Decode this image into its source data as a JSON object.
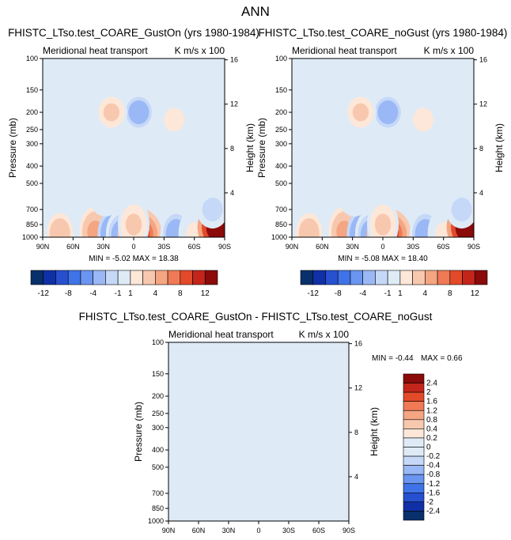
{
  "figure_title": "ANN",
  "colors": {
    "fill_scale": [
      "#08306b",
      "#1030a8",
      "#2750d0",
      "#3f74e8",
      "#6a95f0",
      "#9ab8f5",
      "#c6d8f8",
      "#deebf7",
      "#fde7d8",
      "#f8c8ae",
      "#f4a582",
      "#ef7a55",
      "#e34a2a",
      "#c3251b",
      "#8b0a0a"
    ],
    "background_level": "#deebf7"
  },
  "chart_data": [
    {
      "type": "heatmap",
      "title": "FHISTC_LTso.test_COARE_GustOn (yrs 1980-1984)",
      "left_string": "Meridional heat transport",
      "right_string": "K m/s x 100",
      "xlabel": "",
      "ylabel": "Pressure (mb)",
      "ylabel_right": "Height (km)",
      "x_ticks": [
        "90N",
        "60N",
        "30N",
        "0",
        "30S",
        "60S",
        "90S"
      ],
      "x_values": [
        90,
        60,
        30,
        0,
        -30,
        -60,
        -90
      ],
      "y_ticks": [
        "100",
        "150",
        "200",
        "250",
        "300",
        "400",
        "500",
        "700",
        "850",
        "1000"
      ],
      "y_values": [
        100,
        150,
        200,
        250,
        300,
        400,
        500,
        700,
        850,
        1000
      ],
      "y_right_ticks": [
        "16",
        "12",
        "8",
        "4"
      ],
      "y_right_values": [
        16,
        12,
        8,
        4
      ],
      "y_scale": "log",
      "ylim": [
        1000,
        100
      ],
      "xlim": [
        90,
        -90
      ],
      "stats": "MIN =  -5.02   MAX =  18.38",
      "min": -5.02,
      "max": 18.38,
      "blobs": [
        {
          "lat": 73,
          "p": 950,
          "value": 3.5
        },
        {
          "lat": 38,
          "p": 930,
          "value": 4
        },
        {
          "lat": 20,
          "p": 960,
          "value": -5
        },
        {
          "lat": 12,
          "p": 970,
          "value": -3
        },
        {
          "lat": -6,
          "p": 960,
          "value": 9
        },
        {
          "lat": 0,
          "p": 850,
          "value": 2
        },
        {
          "lat": -5,
          "p": 200,
          "value": -4
        },
        {
          "lat": 22,
          "p": 200,
          "value": 2
        },
        {
          "lat": -40,
          "p": 220,
          "value": 1.5
        },
        {
          "lat": -42,
          "p": 960,
          "value": -4
        },
        {
          "lat": -60,
          "p": 950,
          "value": 1
        },
        {
          "lat": -85,
          "p": 880,
          "value": 16
        },
        {
          "lat": -78,
          "p": 700,
          "value": -2
        },
        {
          "lat": 75,
          "p": 500,
          "value": 0.8
        },
        {
          "lat": 28,
          "p": 600,
          "value": 0.8
        },
        {
          "lat": -30,
          "p": 500,
          "value": 0.6
        },
        {
          "lat": -65,
          "p": 500,
          "value": -0.4
        }
      ]
    },
    {
      "type": "heatmap",
      "title": "FHISTC_LTso.test_COARE_noGust (yrs 1980-1984)",
      "left_string": "Meridional heat transport",
      "right_string": "K m/s x 100",
      "xlabel": "",
      "ylabel": "Pressure (mb)",
      "ylabel_right": "Height (km)",
      "x_ticks": [
        "90N",
        "60N",
        "30N",
        "0",
        "30S",
        "60S",
        "90S"
      ],
      "x_values": [
        90,
        60,
        30,
        0,
        -30,
        -60,
        -90
      ],
      "y_ticks": [
        "100",
        "150",
        "200",
        "250",
        "300",
        "400",
        "500",
        "700",
        "850",
        "1000"
      ],
      "y_values": [
        100,
        150,
        200,
        250,
        300,
        400,
        500,
        700,
        850,
        1000
      ],
      "y_right_ticks": [
        "16",
        "12",
        "8",
        "4"
      ],
      "y_right_values": [
        16,
        12,
        8,
        4
      ],
      "y_scale": "log",
      "ylim": [
        1000,
        100
      ],
      "xlim": [
        90,
        -90
      ],
      "stats": "MIN =  -5.08   MAX =  18.40",
      "min": -5.08,
      "max": 18.4,
      "blobs": [
        {
          "lat": 73,
          "p": 950,
          "value": 3.5
        },
        {
          "lat": 38,
          "p": 930,
          "value": 4
        },
        {
          "lat": 20,
          "p": 960,
          "value": -5
        },
        {
          "lat": 12,
          "p": 970,
          "value": -3
        },
        {
          "lat": -6,
          "p": 960,
          "value": 9
        },
        {
          "lat": 0,
          "p": 850,
          "value": 2
        },
        {
          "lat": -5,
          "p": 200,
          "value": -4
        },
        {
          "lat": 22,
          "p": 200,
          "value": 2
        },
        {
          "lat": -40,
          "p": 220,
          "value": 1.5
        },
        {
          "lat": -42,
          "p": 960,
          "value": -4
        },
        {
          "lat": -60,
          "p": 950,
          "value": 1
        },
        {
          "lat": -85,
          "p": 880,
          "value": 16
        },
        {
          "lat": -78,
          "p": 700,
          "value": -2
        },
        {
          "lat": 75,
          "p": 500,
          "value": 0.8
        },
        {
          "lat": 28,
          "p": 600,
          "value": 0.8
        },
        {
          "lat": -30,
          "p": 500,
          "value": 0.6
        },
        {
          "lat": -65,
          "p": 500,
          "value": -0.4
        }
      ]
    },
    {
      "type": "heatmap",
      "title": "FHISTC_LTso.test_COARE_GustOn - FHISTC_LTso.test_COARE_noGust",
      "left_string": "Meridional heat transport",
      "right_string": "K m/s x 100",
      "xlabel": "",
      "ylabel": "Pressure (mb)",
      "ylabel_right": "Height (km)",
      "x_ticks": [
        "90N",
        "60N",
        "30N",
        "0",
        "30S",
        "60S",
        "90S"
      ],
      "x_values": [
        90,
        60,
        30,
        0,
        -30,
        -60,
        -90
      ],
      "y_ticks": [
        "100",
        "150",
        "200",
        "250",
        "300",
        "400",
        "500",
        "700",
        "850",
        "1000"
      ],
      "y_values": [
        100,
        150,
        200,
        250,
        300,
        400,
        500,
        700,
        850,
        1000
      ],
      "y_right_ticks": [
        "16",
        "12",
        "8",
        "4"
      ],
      "y_right_values": [
        16,
        12,
        8,
        4
      ],
      "y_scale": "log",
      "ylim": [
        1000,
        100
      ],
      "xlim": [
        90,
        -90
      ],
      "stats_min": "MIN =  -0.44",
      "stats_max": "MAX =   0.66",
      "min": -0.44,
      "max": 0.66,
      "stripes": [
        {
          "lat": 76,
          "value": 0.1
        },
        {
          "lat": 60,
          "value": -0.05
        },
        {
          "lat": 43,
          "value": 0.1
        },
        {
          "lat": 28,
          "value": -0.05
        },
        {
          "lat": 15,
          "value": 0.1
        },
        {
          "lat": 2,
          "value": -0.05
        },
        {
          "lat": -10,
          "value": 0.1
        },
        {
          "lat": -25,
          "value": -0.05
        },
        {
          "lat": -38,
          "value": 0.1
        },
        {
          "lat": -50,
          "value": -0.05
        },
        {
          "lat": -62,
          "value": 0.1
        },
        {
          "lat": -76,
          "value": -0.05
        },
        {
          "lat": -86,
          "value": 0.1
        }
      ]
    }
  ],
  "colorbars": [
    {
      "orientation": "horizontal",
      "labels": [
        "-12",
        "-8",
        "-4",
        "-1",
        "1",
        "4",
        "8",
        "12"
      ],
      "boxes": 15
    },
    {
      "orientation": "horizontal",
      "labels": [
        "-12",
        "-8",
        "-4",
        "-1",
        "1",
        "4",
        "8",
        "12"
      ],
      "boxes": 15
    },
    {
      "orientation": "vertical",
      "labels": [
        "2.4",
        "2",
        "1.6",
        "1.2",
        "0.8",
        "0.4",
        "0.2",
        "0",
        "-0.2",
        "-0.4",
        "-0.8",
        "-1.2",
        "-1.6",
        "-2",
        "-2.4"
      ],
      "boxes": 16
    }
  ]
}
